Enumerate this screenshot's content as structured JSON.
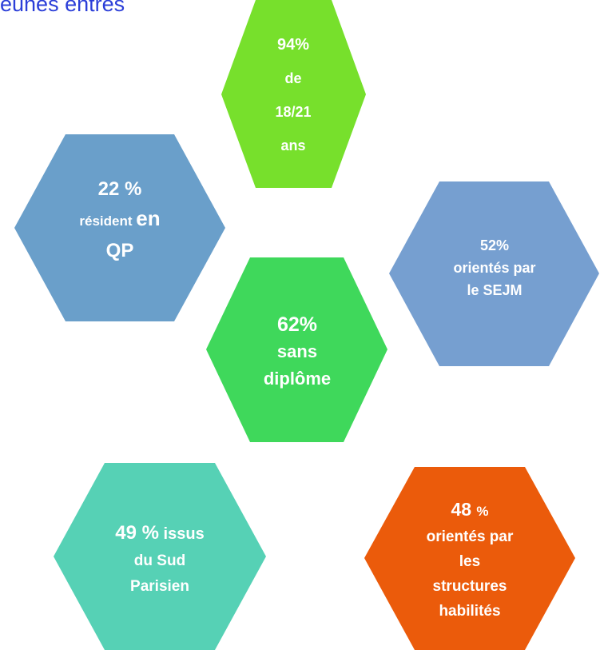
{
  "header": {
    "title": "eunes entres"
  },
  "hexagons": [
    {
      "lines": [
        [
          "94%"
        ],
        [
          "de"
        ],
        [
          "18/21"
        ],
        [
          "ans"
        ]
      ]
    },
    {
      "lines": [
        [
          "22 %"
        ],
        [
          "résident ",
          "en"
        ],
        [
          "QP"
        ]
      ]
    },
    {
      "lines": [
        [
          "52%"
        ],
        [
          "orientés par"
        ],
        [
          "le SEJM"
        ]
      ]
    },
    {
      "lines": [
        [
          "62%"
        ],
        [
          "sans"
        ],
        [
          "diplôme"
        ]
      ]
    },
    {
      "lines": [
        [
          "49 %",
          " issus"
        ],
        [
          "du Sud"
        ],
        [
          "Parisien"
        ]
      ]
    },
    {
      "lines": [
        [
          "48 ",
          "%"
        ],
        [
          "orientés par"
        ],
        [
          "les"
        ],
        [
          "structures"
        ],
        [
          "habilités"
        ]
      ]
    }
  ]
}
